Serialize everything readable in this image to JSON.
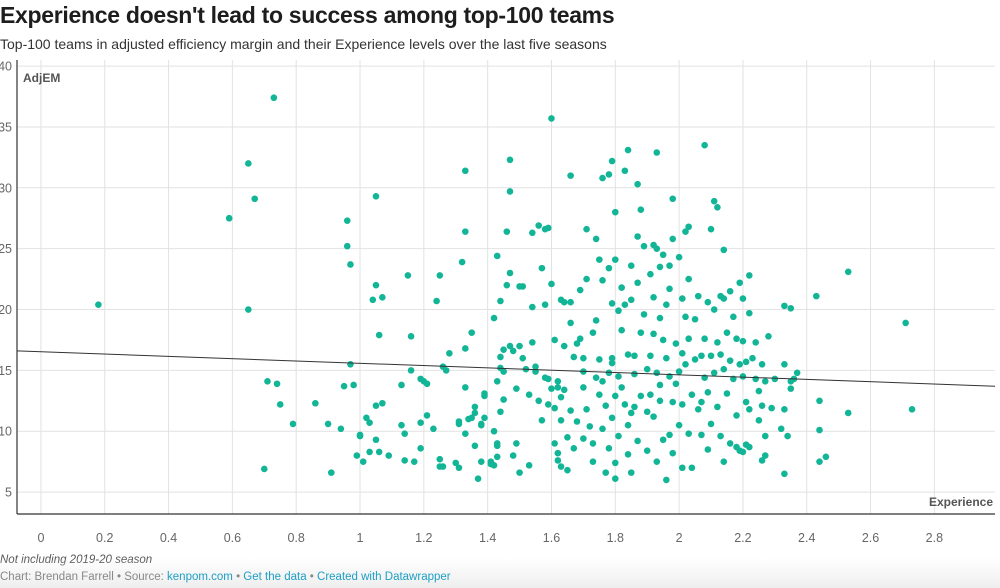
{
  "header": {
    "title": "Experience doesn't lead to success among top-100 teams",
    "subtitle": "Top-100 teams in adjusted efficiency margin and their Experience levels over the last five seasons"
  },
  "footer": {
    "note": "Not including 2019-20 season",
    "chart_by": "Chart: Brendan Farrell",
    "sep1": " • Source: ",
    "source_link": "kenpom.com",
    "sep2": " • ",
    "data_link": "Get the data",
    "sep3": " • ",
    "created_link": "Created with Datawrapper"
  },
  "colors": {
    "dot": "#13b597",
    "trend": "#333333",
    "grid": "#e2e2e2",
    "axis": "#333333",
    "link": "#1d9fc4"
  },
  "chart_data": {
    "type": "scatter",
    "title": "Experience doesn't lead to success among top-100 teams",
    "xlabel": "Experience",
    "ylabel": "AdjEM",
    "xlim": [
      -0.075,
      2.99
    ],
    "ylim": [
      3.2,
      40.5
    ],
    "xticks": [
      0,
      0.2,
      0.4,
      0.6,
      0.8,
      1,
      1.2,
      1.4,
      1.6,
      1.8,
      2,
      2.2,
      2.4,
      2.6,
      2.8
    ],
    "xtick_labels": [
      "0",
      "0.2",
      "0.4",
      "0.6",
      "0.8",
      "1",
      "1.2",
      "1.4",
      "1.6",
      "1.8",
      "2",
      "2.2",
      "2.4",
      "2.6",
      "2.8"
    ],
    "yticks": [
      5,
      10,
      15,
      20,
      25,
      30,
      35,
      40
    ],
    "ytick_labels": [
      "5",
      "10",
      "15",
      "20",
      "25",
      "30",
      "35",
      "40"
    ],
    "grid": true,
    "legend": "none",
    "trendline": {
      "x": [
        -0.075,
        2.99
      ],
      "y": [
        16.6,
        13.7
      ]
    },
    "points": [
      [
        0.18,
        20.4
      ],
      [
        0.59,
        27.5
      ],
      [
        0.65,
        32.0
      ],
      [
        0.67,
        29.1
      ],
      [
        0.73,
        37.4
      ],
      [
        0.65,
        20.0
      ],
      [
        0.7,
        6.9
      ],
      [
        0.71,
        14.1
      ],
      [
        0.74,
        13.9
      ],
      [
        0.75,
        12.2
      ],
      [
        0.79,
        10.6
      ],
      [
        0.86,
        12.3
      ],
      [
        0.9,
        10.6
      ],
      [
        0.91,
        6.6
      ],
      [
        0.94,
        10.2
      ],
      [
        0.95,
        13.7
      ],
      [
        0.98,
        13.8
      ],
      [
        0.96,
        27.3
      ],
      [
        0.96,
        25.2
      ],
      [
        0.97,
        23.7
      ],
      [
        0.97,
        15.5
      ],
      [
        0.99,
        8.0
      ],
      [
        1.0,
        9.7
      ],
      [
        1.0,
        9.6
      ],
      [
        1.01,
        7.5
      ],
      [
        1.02,
        11.1
      ],
      [
        1.03,
        10.7
      ],
      [
        1.03,
        8.3
      ],
      [
        1.05,
        29.3
      ],
      [
        1.04,
        20.8
      ],
      [
        1.05,
        22.0
      ],
      [
        1.06,
        17.9
      ],
      [
        1.05,
        9.3
      ],
      [
        1.05,
        12.1
      ],
      [
        1.06,
        8.3
      ],
      [
        1.07,
        12.3
      ],
      [
        1.07,
        21.0
      ],
      [
        1.09,
        8.0
      ],
      [
        1.13,
        13.8
      ],
      [
        1.13,
        10.5
      ],
      [
        1.14,
        9.8
      ],
      [
        1.14,
        7.6
      ],
      [
        1.15,
        22.8
      ],
      [
        1.16,
        17.8
      ],
      [
        1.17,
        7.5
      ],
      [
        1.16,
        15.0
      ],
      [
        1.19,
        14.3
      ],
      [
        1.19,
        10.7
      ],
      [
        1.19,
        8.6
      ],
      [
        1.2,
        14.1
      ],
      [
        1.21,
        13.9
      ],
      [
        1.21,
        11.3
      ],
      [
        1.23,
        10.2
      ],
      [
        1.24,
        20.7
      ],
      [
        1.25,
        22.8
      ],
      [
        1.25,
        7.7
      ],
      [
        1.25,
        7.1
      ],
      [
        1.26,
        7.1
      ],
      [
        1.26,
        15.3
      ],
      [
        1.27,
        15.0
      ],
      [
        1.28,
        16.4
      ],
      [
        1.3,
        7.4
      ],
      [
        1.31,
        7.0
      ],
      [
        1.31,
        10.8
      ],
      [
        1.31,
        10.6
      ],
      [
        1.32,
        23.9
      ],
      [
        1.33,
        26.4
      ],
      [
        1.33,
        31.4
      ],
      [
        1.33,
        16.8
      ],
      [
        1.33,
        13.6
      ],
      [
        1.33,
        9.8
      ],
      [
        1.34,
        11.0
      ],
      [
        1.35,
        11.1
      ],
      [
        1.35,
        18.1
      ],
      [
        1.36,
        12.0
      ],
      [
        1.36,
        11.5
      ],
      [
        1.36,
        8.8
      ],
      [
        1.37,
        6.1
      ],
      [
        1.38,
        10.6
      ],
      [
        1.38,
        10.5
      ],
      [
        1.38,
        7.5
      ],
      [
        1.39,
        13.1
      ],
      [
        1.39,
        12.9
      ],
      [
        1.39,
        11.1
      ],
      [
        1.41,
        7.5
      ],
      [
        1.41,
        7.3
      ],
      [
        1.42,
        10.0
      ],
      [
        1.42,
        7.2
      ],
      [
        1.43,
        8.8
      ],
      [
        1.43,
        9.0
      ],
      [
        1.43,
        7.9
      ],
      [
        1.44,
        15.2
      ],
      [
        1.43,
        14.1
      ],
      [
        1.43,
        24.4
      ],
      [
        1.42,
        19.3
      ],
      [
        1.44,
        20.7
      ],
      [
        1.44,
        16.1
      ],
      [
        1.44,
        11.6
      ],
      [
        1.45,
        16.7
      ],
      [
        1.45,
        14.9
      ],
      [
        1.45,
        12.6
      ],
      [
        1.46,
        26.4
      ],
      [
        1.46,
        22.0
      ],
      [
        1.47,
        32.3
      ],
      [
        1.47,
        29.7
      ],
      [
        1.47,
        23.0
      ],
      [
        1.47,
        17.0
      ],
      [
        1.48,
        16.6
      ],
      [
        1.48,
        8.0
      ],
      [
        1.49,
        13.5
      ],
      [
        1.49,
        9.0
      ],
      [
        1.5,
        6.6
      ],
      [
        1.5,
        17.0
      ],
      [
        1.5,
        21.9
      ],
      [
        1.51,
        21.9
      ],
      [
        1.51,
        16.0
      ],
      [
        1.52,
        15.1
      ],
      [
        1.53,
        13.0
      ],
      [
        1.53,
        7.2
      ],
      [
        1.54,
        17.3
      ],
      [
        1.54,
        26.3
      ],
      [
        1.54,
        20.2
      ],
      [
        1.55,
        14.9
      ],
      [
        1.55,
        15.3
      ],
      [
        1.56,
        26.9
      ],
      [
        1.56,
        12.5
      ],
      [
        1.57,
        23.4
      ],
      [
        1.57,
        10.9
      ],
      [
        1.58,
        26.6
      ],
      [
        1.58,
        20.4
      ],
      [
        1.58,
        14.4
      ],
      [
        1.59,
        14.3
      ],
      [
        1.59,
        12.2
      ],
      [
        1.6,
        35.7
      ],
      [
        1.59,
        26.7
      ],
      [
        1.6,
        22.1
      ],
      [
        1.6,
        13.5
      ],
      [
        1.61,
        17.5
      ],
      [
        1.61,
        11.9
      ],
      [
        1.61,
        9.0
      ],
      [
        1.62,
        13.6
      ],
      [
        1.62,
        14.1
      ],
      [
        1.62,
        8.2
      ],
      [
        1.62,
        7.6
      ],
      [
        1.63,
        20.8
      ],
      [
        1.63,
        12.8
      ],
      [
        1.63,
        10.9
      ],
      [
        1.63,
        7.1
      ],
      [
        1.64,
        20.6
      ],
      [
        1.64,
        17.0
      ],
      [
        1.64,
        13.4
      ],
      [
        1.65,
        9.5
      ],
      [
        1.65,
        6.8
      ],
      [
        1.66,
        31.0
      ],
      [
        1.66,
        20.6
      ],
      [
        1.66,
        18.9
      ],
      [
        1.66,
        11.7
      ],
      [
        1.67,
        16.1
      ],
      [
        1.67,
        8.6
      ],
      [
        1.68,
        17.2
      ],
      [
        1.68,
        10.8
      ],
      [
        1.69,
        21.6
      ],
      [
        1.69,
        17.6
      ],
      [
        1.7,
        16.0
      ],
      [
        1.7,
        14.9
      ],
      [
        1.7,
        13.6
      ],
      [
        1.7,
        9.4
      ],
      [
        1.71,
        22.5
      ],
      [
        1.71,
        26.6
      ],
      [
        1.71,
        11.8
      ],
      [
        1.72,
        10.4
      ],
      [
        1.73,
        18.1
      ],
      [
        1.73,
        7.5
      ],
      [
        1.73,
        9.0
      ],
      [
        1.74,
        25.8
      ],
      [
        1.74,
        19.1
      ],
      [
        1.74,
        14.4
      ],
      [
        1.75,
        24.1
      ],
      [
        1.75,
        15.9
      ],
      [
        1.75,
        13.0
      ],
      [
        1.76,
        30.8
      ],
      [
        1.76,
        22.4
      ],
      [
        1.76,
        14.1
      ],
      [
        1.76,
        10.2
      ],
      [
        1.77,
        12.1
      ],
      [
        1.77,
        6.6
      ],
      [
        1.78,
        31.1
      ],
      [
        1.78,
        23.4
      ],
      [
        1.78,
        14.8
      ],
      [
        1.78,
        8.6
      ],
      [
        1.79,
        32.2
      ],
      [
        1.79,
        20.5
      ],
      [
        1.79,
        16.0
      ],
      [
        1.79,
        15.6
      ],
      [
        1.79,
        11.1
      ],
      [
        1.8,
        28.0
      ],
      [
        1.8,
        24.1
      ],
      [
        1.8,
        12.9
      ],
      [
        1.8,
        7.4
      ],
      [
        1.8,
        6.1
      ],
      [
        1.81,
        19.9
      ],
      [
        1.81,
        14.5
      ],
      [
        1.81,
        9.6
      ],
      [
        1.82,
        21.8
      ],
      [
        1.82,
        18.3
      ],
      [
        1.82,
        13.6
      ],
      [
        1.83,
        31.4
      ],
      [
        1.83,
        20.4
      ],
      [
        1.83,
        12.2
      ],
      [
        1.84,
        33.1
      ],
      [
        1.84,
        16.3
      ],
      [
        1.84,
        10.5
      ],
      [
        1.84,
        8.1
      ],
      [
        1.85,
        23.6
      ],
      [
        1.85,
        20.8
      ],
      [
        1.85,
        11.5
      ],
      [
        1.85,
        6.6
      ],
      [
        1.86,
        16.2
      ],
      [
        1.86,
        14.7
      ],
      [
        1.86,
        12.0
      ],
      [
        1.87,
        30.3
      ],
      [
        1.87,
        26.0
      ],
      [
        1.87,
        22.2
      ],
      [
        1.87,
        9.2
      ],
      [
        1.88,
        28.2
      ],
      [
        1.88,
        18.1
      ],
      [
        1.88,
        12.9
      ],
      [
        1.89,
        25.2
      ],
      [
        1.89,
        19.6
      ],
      [
        1.9,
        15.1
      ],
      [
        1.9,
        8.4
      ],
      [
        1.9,
        11.6
      ],
      [
        1.91,
        22.9
      ],
      [
        1.91,
        16.2
      ],
      [
        1.91,
        13.0
      ],
      [
        1.92,
        25.3
      ],
      [
        1.92,
        21.0
      ],
      [
        1.92,
        18.0
      ],
      [
        1.92,
        11.2
      ],
      [
        1.93,
        32.9
      ],
      [
        1.93,
        25.0
      ],
      [
        1.93,
        14.8
      ],
      [
        1.93,
        7.5
      ],
      [
        1.94,
        23.5
      ],
      [
        1.94,
        19.3
      ],
      [
        1.94,
        13.8
      ],
      [
        1.94,
        12.5
      ],
      [
        1.95,
        24.5
      ],
      [
        1.95,
        17.5
      ],
      [
        1.95,
        9.3
      ],
      [
        1.96,
        20.4
      ],
      [
        1.96,
        16.0
      ],
      [
        1.96,
        6.0
      ],
      [
        1.97,
        23.6
      ],
      [
        1.97,
        21.7
      ],
      [
        1.97,
        14.5
      ],
      [
        1.97,
        9.7
      ],
      [
        1.98,
        29.1
      ],
      [
        1.98,
        25.8
      ],
      [
        1.98,
        12.4
      ],
      [
        1.98,
        8.2
      ],
      [
        1.99,
        17.2
      ],
      [
        1.99,
        13.9
      ],
      [
        2.0,
        24.3
      ],
      [
        2.0,
        14.9
      ],
      [
        2.0,
        10.5
      ],
      [
        2.01,
        20.9
      ],
      [
        2.01,
        16.4
      ],
      [
        2.01,
        12.2
      ],
      [
        2.01,
        7.0
      ],
      [
        2.02,
        26.4
      ],
      [
        2.02,
        19.4
      ],
      [
        2.02,
        15.5
      ],
      [
        2.03,
        26.8
      ],
      [
        2.03,
        22.5
      ],
      [
        2.03,
        17.6
      ],
      [
        2.03,
        9.8
      ],
      [
        2.04,
        13.0
      ],
      [
        2.04,
        7.0
      ],
      [
        2.05,
        19.2
      ],
      [
        2.05,
        15.9
      ],
      [
        2.06,
        21.1
      ],
      [
        2.06,
        11.8
      ],
      [
        2.07,
        16.2
      ],
      [
        2.07,
        12.4
      ],
      [
        2.07,
        9.7
      ],
      [
        2.08,
        33.5
      ],
      [
        2.08,
        17.6
      ],
      [
        2.08,
        14.4
      ],
      [
        2.09,
        20.6
      ],
      [
        2.09,
        13.2
      ],
      [
        2.09,
        8.5
      ],
      [
        2.1,
        26.6
      ],
      [
        2.1,
        16.2
      ],
      [
        2.1,
        10.6
      ],
      [
        2.11,
        28.9
      ],
      [
        2.11,
        20.0
      ],
      [
        2.11,
        14.8
      ],
      [
        2.12,
        28.4
      ],
      [
        2.12,
        17.3
      ],
      [
        2.12,
        12.0
      ],
      [
        2.13,
        21.1
      ],
      [
        2.13,
        16.3
      ],
      [
        2.13,
        9.6
      ],
      [
        2.14,
        24.9
      ],
      [
        2.14,
        20.9
      ],
      [
        2.14,
        15.1
      ],
      [
        2.14,
        7.5
      ],
      [
        2.15,
        18.1
      ],
      [
        2.15,
        13.1
      ],
      [
        2.16,
        21.5
      ],
      [
        2.16,
        15.8
      ],
      [
        2.16,
        9.0
      ],
      [
        2.17,
        19.4
      ],
      [
        2.17,
        14.3
      ],
      [
        2.18,
        17.6
      ],
      [
        2.18,
        11.3
      ],
      [
        2.18,
        8.7
      ],
      [
        2.19,
        22.2
      ],
      [
        2.19,
        15.5
      ],
      [
        2.19,
        8.4
      ],
      [
        2.2,
        20.9
      ],
      [
        2.2,
        17.4
      ],
      [
        2.2,
        14.5
      ],
      [
        2.2,
        8.3
      ],
      [
        2.21,
        15.7
      ],
      [
        2.21,
        12.4
      ],
      [
        2.21,
        8.9
      ],
      [
        2.22,
        22.8
      ],
      [
        2.22,
        19.7
      ],
      [
        2.22,
        11.8
      ],
      [
        2.22,
        8.7
      ],
      [
        2.23,
        16.0
      ],
      [
        2.24,
        17.3
      ],
      [
        2.24,
        14.3
      ],
      [
        2.25,
        13.3
      ],
      [
        2.25,
        10.9
      ],
      [
        2.26,
        15.5
      ],
      [
        2.26,
        12.1
      ],
      [
        2.26,
        7.6
      ],
      [
        2.27,
        14.1
      ],
      [
        2.27,
        9.6
      ],
      [
        2.27,
        8.0
      ],
      [
        2.28,
        17.8
      ],
      [
        2.29,
        11.9
      ],
      [
        2.3,
        14.3
      ],
      [
        2.32,
        10.2
      ],
      [
        2.33,
        20.3
      ],
      [
        2.33,
        15.5
      ],
      [
        2.33,
        11.8
      ],
      [
        2.33,
        6.5
      ],
      [
        2.34,
        9.6
      ],
      [
        2.35,
        14.1
      ],
      [
        2.35,
        13.5
      ],
      [
        2.35,
        20.1
      ],
      [
        2.36,
        14.3
      ],
      [
        2.37,
        14.8
      ],
      [
        2.43,
        21.1
      ],
      [
        2.44,
        12.5
      ],
      [
        2.44,
        10.1
      ],
      [
        2.44,
        7.5
      ],
      [
        2.46,
        7.9
      ],
      [
        2.53,
        23.1
      ],
      [
        2.53,
        11.5
      ],
      [
        2.71,
        18.9
      ],
      [
        2.73,
        11.8
      ]
    ]
  }
}
